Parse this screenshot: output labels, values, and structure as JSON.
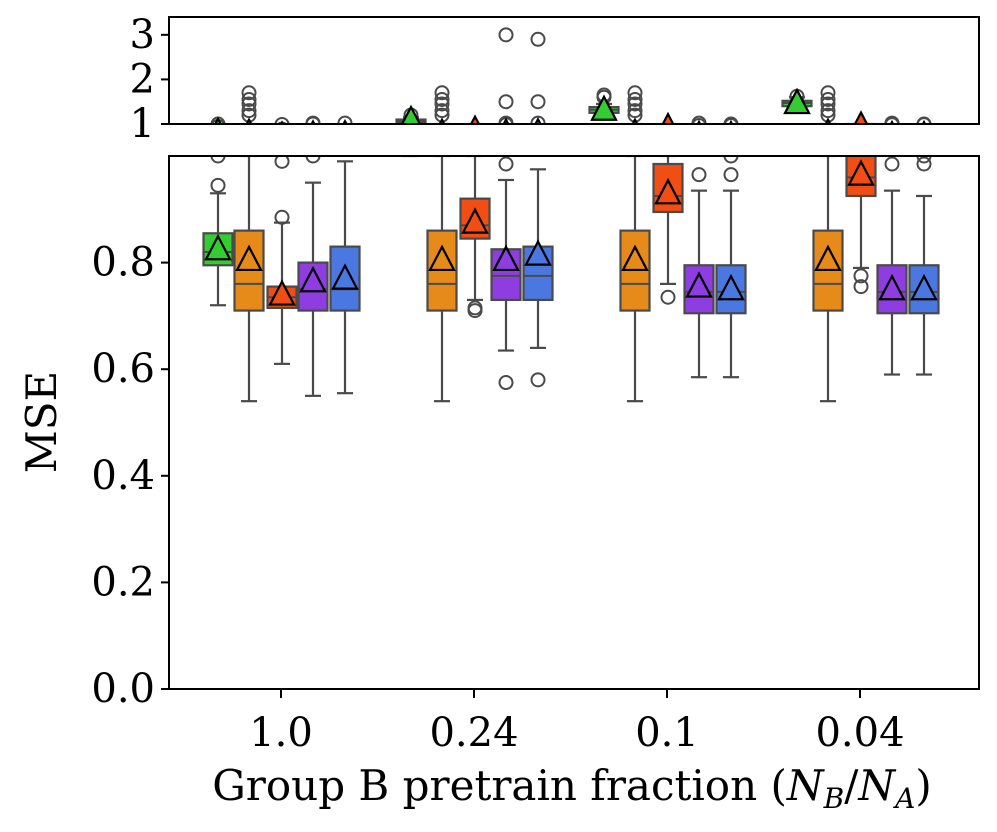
{
  "chart_data": {
    "type": "box",
    "xlabel": "Group B pretrain fraction",
    "xlabel_math": {
      "open": "(",
      "n_b": "N",
      "sub_b": "B",
      "slash": "/",
      "n_a": "N",
      "sub_a": "A",
      "close": ")"
    },
    "ylabel": "MSE",
    "categories": [
      "1.0",
      "0.24",
      "0.1",
      "0.04"
    ],
    "bottom_panel": {
      "ylim": [
        0.0,
        1.0
      ],
      "yticks": [
        "0.0",
        "0.2",
        "0.4",
        "0.6",
        "0.8"
      ],
      "ytick_values": [
        0.0,
        0.2,
        0.4,
        0.6,
        0.8
      ]
    },
    "top_panel": {
      "ylim": [
        1.0,
        3.4
      ],
      "yticks": [
        "1",
        "2",
        "3"
      ],
      "ytick_values": [
        1,
        2,
        3
      ]
    },
    "series": [
      {
        "name": "green",
        "color": "#33cc33",
        "boxes": [
          {
            "q1": 0.795,
            "median": 0.82,
            "q3": 0.855,
            "whislo": 0.72,
            "whishi": 0.93,
            "mean": 0.825,
            "fliers": [
              0.945,
              1.0
            ]
          },
          {
            "q1": 1.03,
            "median": 1.07,
            "q3": 1.1,
            "whislo": 1.0,
            "whishi": 1.15,
            "mean": 1.09,
            "fliers": [
              1.2
            ]
          },
          {
            "q1": 1.25,
            "median": 1.32,
            "q3": 1.38,
            "whislo": 1.15,
            "whishi": 1.45,
            "mean": 1.32,
            "fliers": [
              1.6,
              1.65
            ]
          },
          {
            "q1": 1.4,
            "median": 1.47,
            "q3": 1.52,
            "whislo": 1.3,
            "whishi": 1.6,
            "mean": 1.47,
            "fliers": [
              1.62
            ]
          }
        ]
      },
      {
        "name": "orange",
        "color": "#e68a1a",
        "boxes": [
          {
            "q1": 0.71,
            "median": 0.76,
            "q3": 0.86,
            "whislo": 0.54,
            "whishi": 1.0,
            "mean": 0.805,
            "fliers": [
              1.2,
              1.3,
              1.45,
              1.55,
              1.7
            ]
          },
          {
            "q1": 0.71,
            "median": 0.76,
            "q3": 0.86,
            "whislo": 0.54,
            "whishi": 1.0,
            "mean": 0.805,
            "fliers": [
              1.2,
              1.3,
              1.45,
              1.55,
              1.7
            ]
          },
          {
            "q1": 0.71,
            "median": 0.76,
            "q3": 0.86,
            "whislo": 0.54,
            "whishi": 1.0,
            "mean": 0.805,
            "fliers": [
              1.2,
              1.3,
              1.45,
              1.55,
              1.7
            ]
          },
          {
            "q1": 0.71,
            "median": 0.76,
            "q3": 0.86,
            "whislo": 0.54,
            "whishi": 1.0,
            "mean": 0.805,
            "fliers": [
              1.2,
              1.3,
              1.45,
              1.55,
              1.7
            ]
          }
        ]
      },
      {
        "name": "red-orange",
        "color": "#f04e14",
        "boxes": [
          {
            "q1": 0.715,
            "median": 0.735,
            "q3": 0.755,
            "whislo": 0.61,
            "whishi": 0.875,
            "mean": 0.74,
            "fliers": [
              0.885,
              0.99
            ]
          },
          {
            "q1": 0.845,
            "median": 0.87,
            "q3": 0.92,
            "whislo": 0.73,
            "whishi": 1.0,
            "mean": 0.875,
            "fliers": [
              0.71,
              0.715
            ]
          },
          {
            "q1": 0.895,
            "median": 0.925,
            "q3": 0.985,
            "whislo": 0.76,
            "whishi": 1.0,
            "mean": 0.93,
            "fliers": [
              0.735
            ]
          },
          {
            "q1": 0.925,
            "median": 0.96,
            "q3": 1.0,
            "whislo": 0.79,
            "whishi": 1.0,
            "mean": 0.965,
            "fliers": [
              0.755,
              0.775
            ]
          }
        ]
      },
      {
        "name": "purple",
        "color": "#8e3de0",
        "boxes": [
          {
            "q1": 0.71,
            "median": 0.75,
            "q3": 0.8,
            "whislo": 0.55,
            "whishi": 0.95,
            "mean": 0.765,
            "fliers": [
              1.0,
              1.02
            ]
          },
          {
            "q1": 0.73,
            "median": 0.775,
            "q3": 0.825,
            "whislo": 0.635,
            "whishi": 0.955,
            "mean": 0.805,
            "fliers": [
              0.575,
              0.985,
              1.02,
              1.5,
              3.0
            ]
          },
          {
            "q1": 0.705,
            "median": 0.745,
            "q3": 0.795,
            "whislo": 0.585,
            "whishi": 0.935,
            "mean": 0.755,
            "fliers": [
              0.965,
              1.02
            ]
          },
          {
            "q1": 0.705,
            "median": 0.745,
            "q3": 0.795,
            "whislo": 0.59,
            "whishi": 0.935,
            "mean": 0.75,
            "fliers": [
              0.985,
              1.02
            ]
          }
        ]
      },
      {
        "name": "blue",
        "color": "#4a78e0",
        "boxes": [
          {
            "q1": 0.71,
            "median": 0.75,
            "q3": 0.83,
            "whislo": 0.555,
            "whishi": 0.99,
            "mean": 0.77,
            "fliers": [
              1.02
            ]
          },
          {
            "q1": 0.73,
            "median": 0.775,
            "q3": 0.83,
            "whislo": 0.64,
            "whishi": 0.975,
            "mean": 0.815,
            "fliers": [
              0.58,
              1.02,
              1.5,
              2.9
            ]
          },
          {
            "q1": 0.705,
            "median": 0.745,
            "q3": 0.795,
            "whislo": 0.585,
            "whishi": 0.935,
            "mean": 0.75,
            "fliers": [
              0.965,
              1.0
            ]
          },
          {
            "q1": 0.705,
            "median": 0.745,
            "q3": 0.795,
            "whislo": 0.59,
            "whishi": 0.925,
            "mean": 0.75,
            "fliers": [
              0.985,
              1.0
            ]
          }
        ]
      }
    ]
  }
}
